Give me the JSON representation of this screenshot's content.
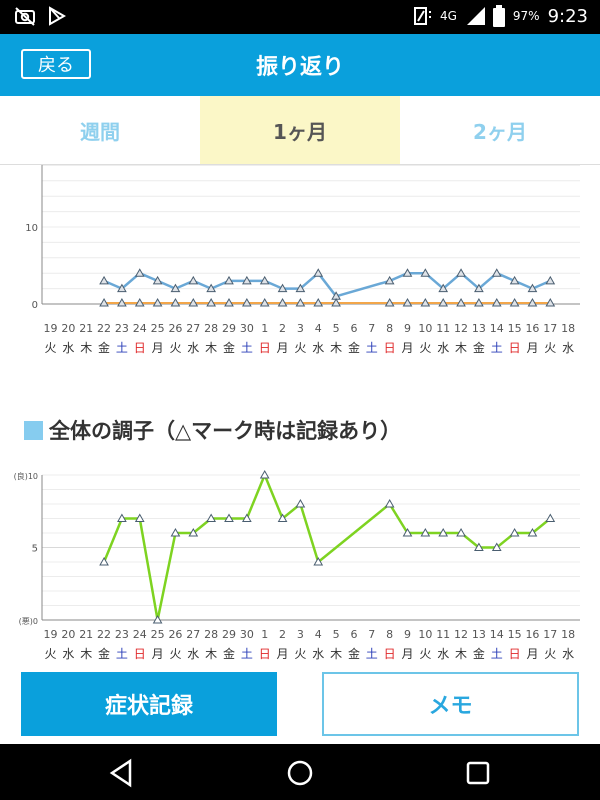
{
  "status_bar": {
    "network": "4G",
    "battery": "97%",
    "time": "9:23",
    "icons": [
      "camera-off-icon",
      "play-store-icon",
      "vibrate-icon",
      "signal-icon",
      "battery-icon"
    ]
  },
  "header": {
    "back_label": "戻る",
    "title": "振り返り"
  },
  "tabs": [
    {
      "label": "週間",
      "active": false
    },
    {
      "label": "1ヶ月",
      "active": true
    },
    {
      "label": "2ヶ月",
      "active": false
    }
  ],
  "section2": {
    "title": "全体の調子（△マーク時は記録あり）"
  },
  "buttons": {
    "record_label": "症状記録",
    "memo_label": "メモ"
  },
  "colors": {
    "accent": "#0aa0dc",
    "series_blue": "#6aa8d6",
    "series_orange": "#f2a64a",
    "series_green": "#7ed321",
    "saturday": "#2b3fb8",
    "sunday": "#e0282a"
  },
  "x_axis": {
    "days": [
      "19",
      "20",
      "21",
      "22",
      "23",
      "24",
      "25",
      "26",
      "27",
      "28",
      "29",
      "30",
      "1",
      "2",
      "3",
      "4",
      "5",
      "6",
      "7",
      "8",
      "9",
      "10",
      "11",
      "12",
      "13",
      "14",
      "15",
      "16",
      "17",
      "18"
    ],
    "weekdays": [
      "火",
      "水",
      "木",
      "金",
      "土",
      "日",
      "月",
      "火",
      "水",
      "木",
      "金",
      "土",
      "日",
      "月",
      "火",
      "水",
      "木",
      "金",
      "土",
      "日",
      "月",
      "火",
      "水",
      "木",
      "金",
      "土",
      "日",
      "月",
      "火",
      "水"
    ]
  },
  "chart_data": [
    {
      "type": "line",
      "ytick_labels": [
        "0",
        "10"
      ],
      "ylim": [
        0,
        20
      ],
      "series": [
        {
          "values": [
            null,
            null,
            null,
            3,
            2,
            4,
            3,
            2,
            3,
            2,
            3,
            3,
            3,
            2,
            2,
            4,
            1,
            null,
            null,
            3,
            4,
            4,
            2,
            4,
            2,
            4,
            3,
            2,
            3,
            null
          ]
        },
        {
          "values": [
            null,
            null,
            null,
            0,
            0,
            0,
            0,
            0,
            0,
            0,
            0,
            0,
            0,
            0,
            0,
            0,
            0,
            null,
            null,
            0,
            0,
            0,
            0,
            0,
            0,
            0,
            0,
            0,
            0,
            null
          ]
        }
      ]
    },
    {
      "type": "line",
      "ytick_labels": [
        "(悪)0",
        "5",
        "(良)10"
      ],
      "ylim": [
        0,
        10
      ],
      "series": [
        {
          "values": [
            null,
            null,
            null,
            4,
            7,
            7,
            0,
            6,
            6,
            7,
            7,
            7,
            10,
            7,
            8,
            4,
            null,
            null,
            null,
            8,
            6,
            6,
            6,
            6,
            5,
            5,
            6,
            6,
            7,
            null
          ]
        }
      ]
    }
  ],
  "navbar": {
    "icons": [
      "back-triangle-icon",
      "home-circle-icon",
      "recents-square-icon"
    ]
  }
}
